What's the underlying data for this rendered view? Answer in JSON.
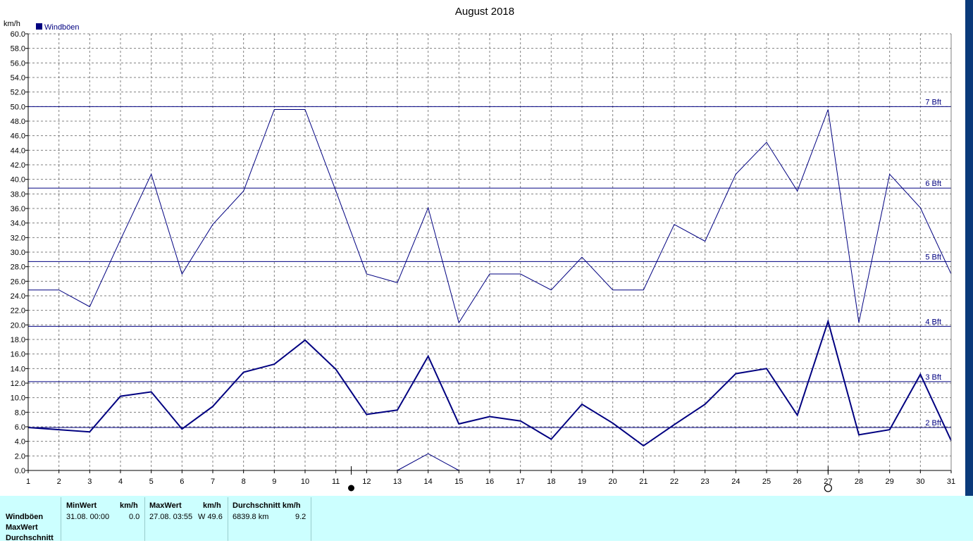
{
  "chart_data": {
    "type": "line",
    "title": "August 2018",
    "ylabel": "km/h",
    "legend": "Windböen",
    "legend_position": "top-left",
    "grid": true,
    "xlim": [
      1,
      31
    ],
    "ylim": [
      0,
      60
    ],
    "x_ticks": [
      "1",
      "2",
      "3",
      "4",
      "5",
      "6",
      "7",
      "8",
      "9",
      "10",
      "11",
      "12",
      "13",
      "14",
      "15",
      "16",
      "17",
      "18",
      "19",
      "20",
      "21",
      "22",
      "23",
      "24",
      "25",
      "26",
      "27",
      "28",
      "29",
      "30",
      "31"
    ],
    "y_ticks": [
      "0.0",
      "2.0",
      "4.0",
      "6.0",
      "8.0",
      "10.0",
      "12.0",
      "14.0",
      "16.0",
      "18.0",
      "20.0",
      "22.0",
      "24.0",
      "26.0",
      "28.0",
      "30.0",
      "32.0",
      "34.0",
      "36.0",
      "38.0",
      "40.0",
      "42.0",
      "44.0",
      "46.0",
      "48.0",
      "50.0",
      "52.0",
      "54.0",
      "56.0",
      "58.0",
      "60.0"
    ],
    "series": [
      {
        "name": "Windböen",
        "style": "thin",
        "x": [
          1,
          2,
          3,
          4,
          5,
          6,
          7,
          8,
          9,
          10,
          11,
          12,
          13,
          14,
          15,
          16,
          17,
          18,
          19,
          20,
          21,
          22,
          23,
          24,
          25,
          26,
          27,
          28,
          29,
          30,
          31
        ],
        "values": [
          24.8,
          24.8,
          22.5,
          31.7,
          40.7,
          27.0,
          33.8,
          38.4,
          49.6,
          49.6,
          38.4,
          27.0,
          25.8,
          36.1,
          20.3,
          27.0,
          27.0,
          24.8,
          29.3,
          24.8,
          24.8,
          33.8,
          31.5,
          40.7,
          45.1,
          38.4,
          49.6,
          20.3,
          40.7,
          36.1,
          27.0
        ]
      },
      {
        "name": "",
        "style": "thick",
        "x": [
          1,
          2,
          3,
          4,
          5,
          6,
          7,
          8,
          9,
          10,
          11,
          12,
          13,
          14,
          15,
          16,
          17,
          18,
          19,
          20,
          21,
          22,
          23,
          24,
          25,
          26,
          27,
          28,
          29,
          30,
          31
        ],
        "values": [
          5.9,
          5.6,
          5.3,
          10.2,
          10.8,
          5.7,
          8.8,
          13.5,
          14.6,
          17.9,
          13.9,
          7.7,
          8.3,
          15.7,
          6.4,
          7.4,
          6.8,
          4.3,
          9.1,
          6.5,
          3.4,
          6.3,
          9.1,
          13.3,
          14.0,
          7.6,
          20.5,
          4.9,
          5.6,
          13.2,
          4.1
        ]
      },
      {
        "name": "",
        "style": "thin",
        "x": [
          13,
          14,
          15
        ],
        "values": [
          0.0,
          2.3,
          0.0
        ]
      }
    ],
    "beaufort_lines": [
      {
        "label": "2 Bft",
        "value": 5.9
      },
      {
        "label": "3 Bft",
        "value": 12.2
      },
      {
        "label": "4 Bft",
        "value": 19.8
      },
      {
        "label": "5 Bft",
        "value": 28.7
      },
      {
        "label": "6 Bft",
        "value": 38.8
      },
      {
        "label": "7 Bft",
        "value": 50.0
      }
    ],
    "moon_phases": [
      {
        "type": "full-moon",
        "x": 11.5
      },
      {
        "type": "new-moon",
        "x": 27
      }
    ],
    "colors": {
      "series": "#000080",
      "grid": "#808080",
      "axis": "#000000",
      "panel": "#ccffff"
    }
  },
  "stats": {
    "row_labels": [
      "Windböen",
      "MaxWert",
      "Durchschnitt"
    ],
    "minwert_header": "MinWert",
    "min_unit_header": "km/h",
    "min_date": "31.08.  00:00",
    "min_value": "0.0",
    "maxwert_header": "MaxWert",
    "max_unit_header": "km/h",
    "max_date": "27.08.  03:55",
    "max_value": "W 49.6",
    "avg_header": "Durchschnitt km/h",
    "avg_distance": "6839.8 km",
    "avg_value": "9.2"
  }
}
